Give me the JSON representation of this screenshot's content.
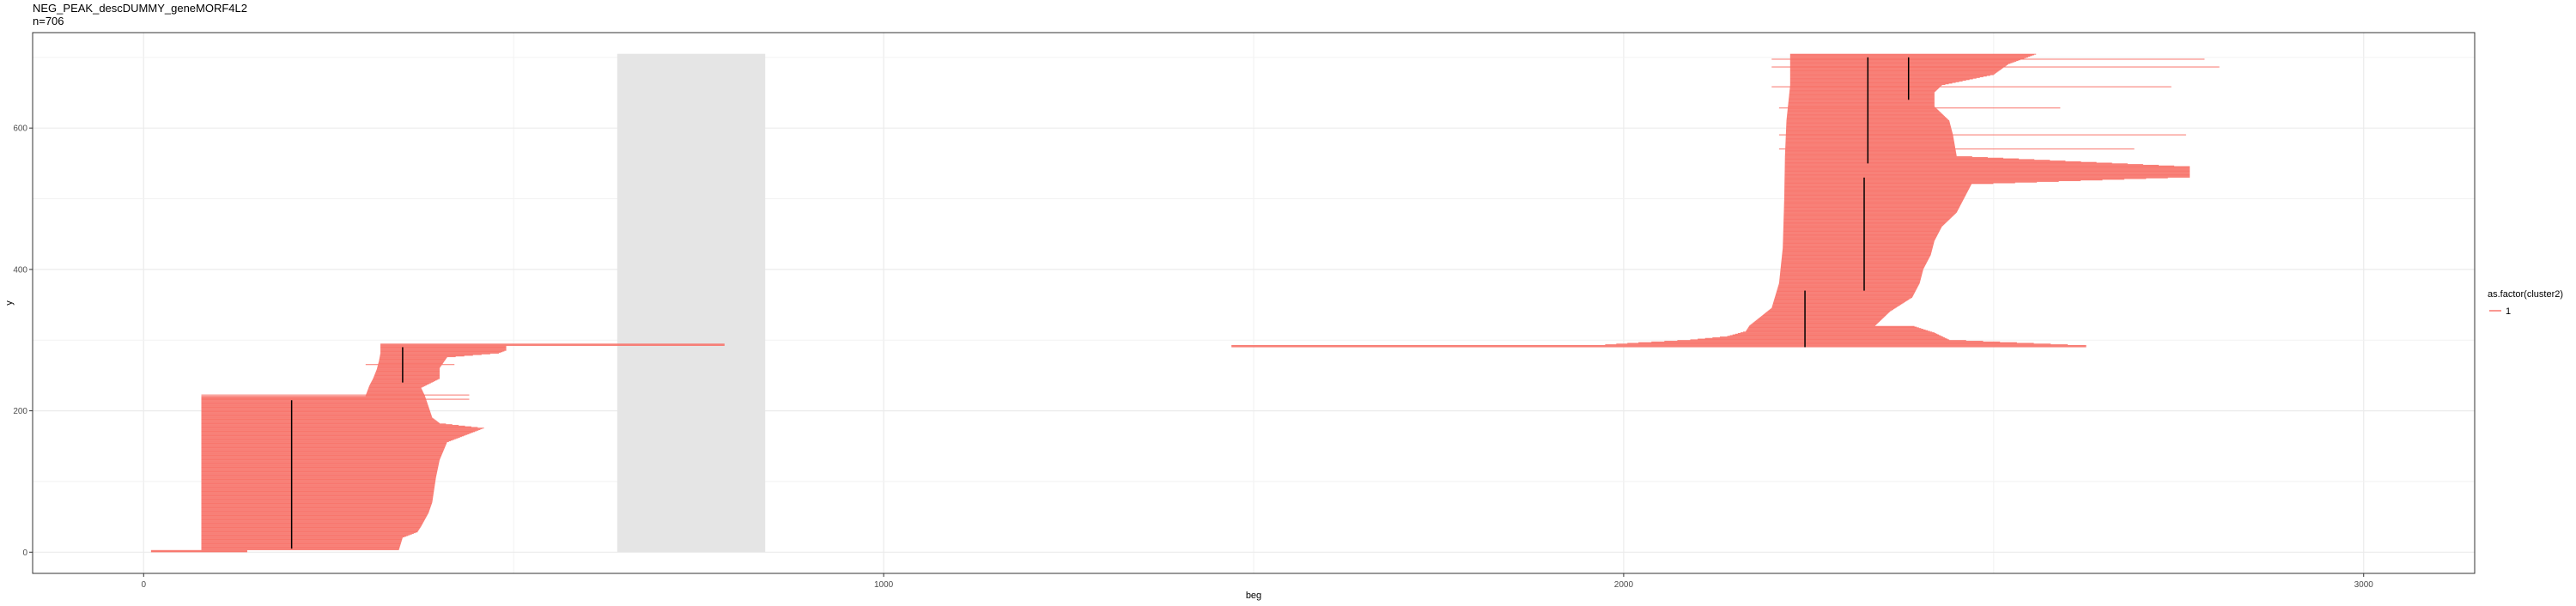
{
  "title": {
    "main": "NEG_PEAK_descDUMMY_geneMORF4L2",
    "subtitle": "n=706"
  },
  "legend": {
    "title": "as.factor(cluster2)",
    "placement": "right",
    "items": [
      {
        "label": "1",
        "color": "#F8766D"
      }
    ]
  },
  "colors": {
    "series": "#F8766D",
    "shade": "#e5e5e5",
    "grid": "#ebebeb",
    "panel_border": "#333333",
    "mark": "#000000"
  },
  "chart_data": {
    "type": "bar",
    "orientation": "horizontal-segments",
    "xlabel": "beg",
    "ylabel": "y",
    "xlim": [
      -150,
      3150
    ],
    "ylim": [
      -30,
      735
    ],
    "grid": true,
    "x_ticks": [
      0,
      1000,
      2000,
      3000
    ],
    "y_ticks": [
      0,
      200,
      400,
      600
    ],
    "shaded_region": {
      "x": [
        640,
        840
      ],
      "y": [
        0,
        705
      ]
    },
    "series": [
      {
        "name": "1",
        "profiles": [
          {
            "y0": 0,
            "y1": 3,
            "start": [
              [
                0,
                10
              ]
            ],
            "end": [
              [
                0,
                140
              ]
            ]
          },
          {
            "y0": 3,
            "y1": 221,
            "start": [
              [
                3,
                78
              ],
              [
                221,
                78
              ]
            ],
            "end": [
              [
                3,
                345
              ],
              [
                20,
                350
              ],
              [
                28,
                370
              ],
              [
                36,
                375
              ],
              [
                55,
                385
              ],
              [
                70,
                390
              ],
              [
                105,
                395
              ],
              [
                130,
                400
              ],
              [
                155,
                410
              ],
              [
                175,
                460
              ],
              [
                182,
                400
              ],
              [
                190,
                390
              ],
              [
                221,
                380
              ]
            ]
          },
          {
            "y0": 221,
            "y1": 292,
            "start": [
              [
                221,
                300
              ],
              [
                235,
                305
              ],
              [
                245,
                310
              ],
              [
                258,
                315
              ],
              [
                270,
                318
              ],
              [
                281,
                320
              ],
              [
                292,
                320
              ]
            ],
            "end": [
              [
                221,
                380
              ],
              [
                232,
                375
              ],
              [
                245,
                400
              ],
              [
                260,
                400
              ],
              [
                275,
                410
              ],
              [
                281,
                480
              ],
              [
                285,
                490
              ],
              [
                292,
                490
              ]
            ]
          },
          {
            "y0": 292,
            "y1": 295,
            "start": [
              [
                292,
                320
              ]
            ],
            "end": [
              [
                292,
                785
              ]
            ]
          },
          {
            "y0": 290,
            "y1": 293,
            "start": [
              [
                290,
                1470
              ]
            ],
            "end": [
              [
                290,
                2625
              ]
            ]
          },
          {
            "y0": 293,
            "y1": 320,
            "start": [
              [
                293,
                1975
              ],
              [
                296,
                2020
              ],
              [
                300,
                2090
              ],
              [
                305,
                2140
              ],
              [
                312,
                2165
              ],
              [
                320,
                2170
              ]
            ],
            "end": [
              [
                293,
                2600
              ],
              [
                300,
                2440
              ],
              [
                310,
                2420
              ],
              [
                320,
                2390
              ]
            ]
          },
          {
            "y0": 320,
            "y1": 705,
            "start": [
              [
                320,
                2170
              ],
              [
                345,
                2200
              ],
              [
                380,
                2210
              ],
              [
                430,
                2215
              ],
              [
                500,
                2217
              ],
              [
                560,
                2218
              ],
              [
                610,
                2220
              ],
              [
                660,
                2225
              ],
              [
                705,
                2225
              ]
            ],
            "end": [
              [
                320,
                2340
              ],
              [
                340,
                2360
              ],
              [
                360,
                2390
              ],
              [
                380,
                2400
              ],
              [
                400,
                2405
              ],
              [
                420,
                2415
              ],
              [
                440,
                2420
              ],
              [
                460,
                2430
              ],
              [
                480,
                2450
              ],
              [
                500,
                2460
              ],
              [
                520,
                2470
              ],
              [
                530,
                2765
              ],
              [
                545,
                2765
              ],
              [
                560,
                2450
              ],
              [
                590,
                2445
              ],
              [
                610,
                2440
              ],
              [
                630,
                2420
              ],
              [
                650,
                2420
              ],
              [
                660,
                2430
              ],
              [
                675,
                2500
              ],
              [
                690,
                2520
              ],
              [
                705,
                2560
              ]
            ]
          }
        ],
        "overflow_lines": [
          {
            "y": 686,
            "start": 2200,
            "end": 2805
          },
          {
            "y": 697,
            "start": 2200,
            "end": 2785
          },
          {
            "y": 658,
            "start": 2200,
            "end": 2740
          },
          {
            "y": 628,
            "start": 2210,
            "end": 2590
          },
          {
            "y": 590,
            "start": 2210,
            "end": 2760
          },
          {
            "y": 570,
            "start": 2210,
            "end": 2690
          },
          {
            "y": 222,
            "start": 78,
            "end": 440
          },
          {
            "y": 216,
            "start": 78,
            "end": 440
          },
          {
            "y": 265,
            "start": 300,
            "end": 420
          }
        ],
        "dark_marks": [
          {
            "x": 200,
            "y0": 5,
            "y1": 215
          },
          {
            "x": 350,
            "y0": 240,
            "y1": 290
          },
          {
            "x": 2245,
            "y0": 290,
            "y1": 370
          },
          {
            "x": 2325,
            "y0": 370,
            "y1": 530
          },
          {
            "x": 2330,
            "y0": 550,
            "y1": 700
          },
          {
            "x": 2385,
            "y0": 640,
            "y1": 700
          }
        ]
      }
    ]
  }
}
